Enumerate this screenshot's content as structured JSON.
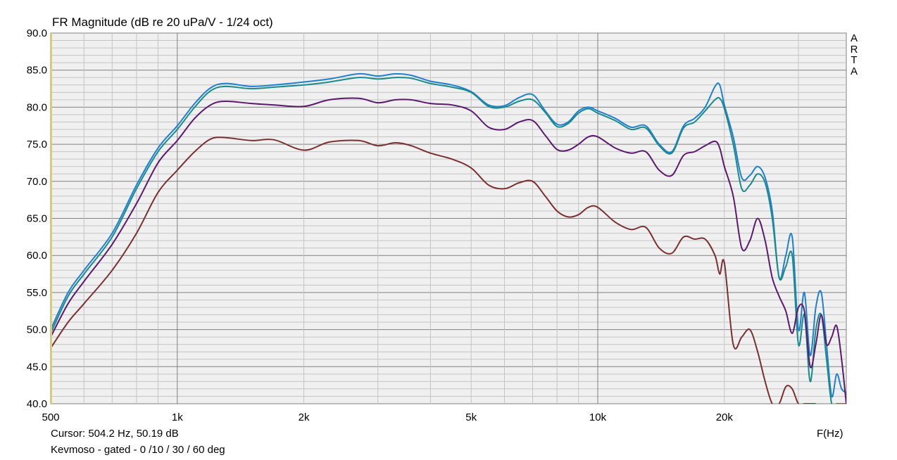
{
  "chart_data": {
    "type": "line",
    "title": "FR Magnitude (dB re 20 uPa/V - 1/24 oct)",
    "watermark": [
      "A",
      "R",
      "T",
      "A"
    ],
    "xlabel": "F(Hz)",
    "x_scale": "log",
    "xlim": [
      500,
      39000
    ],
    "ylim": [
      40,
      90
    ],
    "y_ticks": [
      "40.0",
      "45.0",
      "50.0",
      "55.0",
      "60.0",
      "65.0",
      "70.0",
      "75.0",
      "80.0",
      "85.0",
      "90.0"
    ],
    "x_ticks": [
      {
        "value": 500,
        "label": "500"
      },
      {
        "value": 1000,
        "label": "1k"
      },
      {
        "value": 2000,
        "label": "2k"
      },
      {
        "value": 5000,
        "label": "5k"
      },
      {
        "value": 10000,
        "label": "10k"
      },
      {
        "value": 20000,
        "label": "20k"
      }
    ],
    "grid": true,
    "background": "#f0f0f0",
    "series": [
      {
        "color": "#1f7fd0",
        "x": [
          500,
          550,
          600,
          700,
          800,
          900,
          1000,
          1100,
          1200,
          1300,
          1500,
          1700,
          2000,
          2300,
          2700,
          3000,
          3300,
          3600,
          4000,
          4500,
          5000,
          5500,
          6000,
          6500,
          7000,
          7500,
          8000,
          8500,
          9000,
          9500,
          10000,
          11000,
          12000,
          13000,
          14000,
          15000,
          16000,
          17000,
          18000,
          19000,
          19500,
          20000,
          21000,
          22000,
          23000,
          24000,
          25000,
          26000,
          27000,
          28000,
          29000,
          30000,
          31000,
          32000,
          33000,
          34000,
          35000,
          36000,
          37000,
          38000,
          39000
        ],
        "y": [
          50,
          55,
          58,
          63,
          69.5,
          74.5,
          77.5,
          80.5,
          82.6,
          83.2,
          82.8,
          83,
          83.4,
          83.8,
          84.5,
          84.2,
          84.5,
          84.3,
          83.5,
          83,
          82.1,
          80.3,
          80.2,
          81.3,
          81.7,
          79.5,
          77.7,
          78,
          79.5,
          80,
          79.5,
          78.5,
          77.3,
          77.5,
          75,
          74,
          77.5,
          78.5,
          80,
          82.8,
          83,
          80.3,
          76,
          70.5,
          70.8,
          72,
          70.5,
          66,
          57,
          60,
          62.5,
          50,
          55,
          46.5,
          53,
          55,
          48,
          41,
          44,
          42,
          41.5
        ]
      },
      {
        "color": "#1a8a8a",
        "x": [
          500,
          550,
          600,
          700,
          800,
          900,
          1000,
          1100,
          1200,
          1300,
          1500,
          1700,
          2000,
          2300,
          2700,
          3000,
          3300,
          3600,
          4000,
          4500,
          5000,
          5500,
          6000,
          6500,
          7000,
          7500,
          8000,
          8500,
          9000,
          9500,
          10000,
          11000,
          12000,
          13000,
          14000,
          15000,
          16000,
          17000,
          18000,
          19000,
          19500,
          20000,
          21000,
          22000,
          23000,
          24000,
          25000,
          26000,
          27000,
          28000,
          29000,
          30000,
          31000,
          32000,
          33000,
          34000,
          35000,
          36000,
          37000,
          38000,
          39000
        ],
        "y": [
          49.5,
          54.5,
          57.5,
          62.5,
          69,
          74,
          77,
          80,
          82.2,
          82.8,
          82.5,
          82.7,
          83,
          83.4,
          84,
          83.8,
          84,
          83.9,
          83.2,
          82.7,
          82,
          80.1,
          80,
          80.8,
          81,
          79.3,
          77.4,
          77.8,
          79.2,
          79.8,
          79.2,
          78.2,
          77,
          77.2,
          74.8,
          73.8,
          77.2,
          78,
          79.5,
          81,
          81.2,
          79.8,
          75,
          69,
          69.5,
          71,
          69.8,
          65,
          57,
          58.5,
          60,
          48,
          52,
          43,
          50,
          52,
          46,
          40,
          40,
          40,
          40
        ]
      },
      {
        "color": "#5c1a6e",
        "x": [
          500,
          550,
          600,
          700,
          800,
          900,
          1000,
          1100,
          1200,
          1300,
          1500,
          1700,
          2000,
          2300,
          2700,
          3000,
          3300,
          3600,
          4000,
          4500,
          5000,
          5500,
          6000,
          6500,
          7000,
          7500,
          8000,
          8500,
          9000,
          9500,
          10000,
          11000,
          12000,
          13000,
          14000,
          15000,
          16000,
          17000,
          18000,
          19000,
          19500,
          20000,
          21000,
          22000,
          23000,
          24000,
          25000,
          26000,
          27000,
          28000,
          29000,
          30000,
          31000,
          32000,
          33000,
          34000,
          35000,
          36000,
          37000,
          38000,
          39000
        ],
        "y": [
          49,
          53.5,
          56.5,
          61.5,
          67,
          72.5,
          75.5,
          78.5,
          80.3,
          80.8,
          80.5,
          80.3,
          80.1,
          81,
          81.2,
          80.6,
          81,
          81,
          80.5,
          80.3,
          79.5,
          77.3,
          77,
          78,
          78.2,
          76.2,
          74.3,
          74.2,
          75,
          76,
          76,
          74.5,
          73.8,
          74,
          71.5,
          70.8,
          73.5,
          74,
          74.8,
          75.4,
          74.5,
          72,
          68,
          61,
          62,
          65,
          62,
          57,
          54.5,
          52.5,
          49.5,
          53,
          52.5,
          45,
          48,
          52,
          48,
          49,
          50.5,
          46,
          40
        ]
      },
      {
        "color": "#7a3030",
        "x": [
          500,
          550,
          600,
          700,
          800,
          900,
          1000,
          1100,
          1200,
          1300,
          1500,
          1700,
          2000,
          2300,
          2700,
          3000,
          3300,
          3600,
          4000,
          4500,
          5000,
          5500,
          6000,
          6500,
          7000,
          7500,
          8000,
          8500,
          9000,
          9500,
          10000,
          11000,
          12000,
          13000,
          14000,
          15000,
          16000,
          17000,
          18000,
          19000,
          19500,
          20000,
          21000,
          22000,
          23000,
          24000,
          25000,
          26000,
          27000,
          28000,
          29000,
          30000,
          31000,
          32000,
          33000
        ],
        "y": [
          47.5,
          51,
          53.5,
          58,
          63,
          68.5,
          71.5,
          74,
          75.7,
          75.9,
          75.5,
          75.6,
          74.2,
          75.3,
          75.5,
          74.8,
          75.2,
          74.8,
          73.8,
          73,
          71.8,
          69.5,
          69,
          69.8,
          70,
          68,
          66,
          65.2,
          65.5,
          66.5,
          66.5,
          64.5,
          63.5,
          63.8,
          61,
          60.3,
          62.5,
          62.2,
          62.2,
          60,
          57.5,
          59,
          48,
          49,
          50,
          47,
          43,
          40,
          40,
          42.3,
          42,
          40,
          40,
          40,
          40
        ]
      }
    ]
  },
  "footer": {
    "cursor": "Cursor: 504.2 Hz, 50.19 dB",
    "description": "Kevmoso - gated - 0 /10 / 30 / 60 deg"
  }
}
